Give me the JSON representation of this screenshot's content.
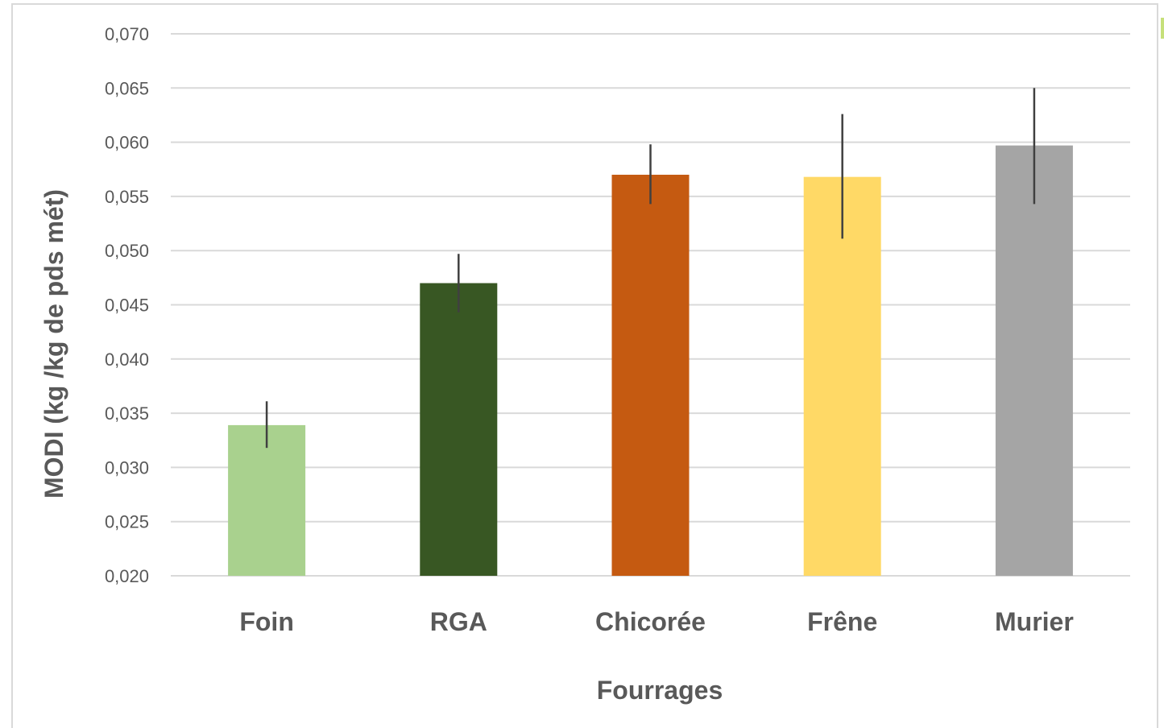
{
  "chart_data": {
    "type": "bar",
    "title": "",
    "xlabel": "Fourrages",
    "ylabel": "MODI (kg /kg de pds mét)",
    "categories": [
      "Foin",
      "RGA",
      "Chicorée",
      "Frêne",
      "Murier"
    ],
    "series": [
      {
        "values": [
          0.0339,
          0.047,
          0.057,
          0.0568,
          0.0597
        ],
        "error_low": [
          0.0318,
          0.0443,
          0.0543,
          0.0511,
          0.0543
        ],
        "error_high": [
          0.0361,
          0.0497,
          0.0598,
          0.0626,
          0.065
        ],
        "colors": [
          "#a9d18e",
          "#385723",
          "#c55a11",
          "#ffd966",
          "#a5a5a5"
        ]
      }
    ],
    "ylim": [
      0.02,
      0.07
    ],
    "yticks": [
      "0,020",
      "0,025",
      "0,030",
      "0,035",
      "0,040",
      "0,045",
      "0,050",
      "0,055",
      "0,060",
      "0,065",
      "0,070"
    ],
    "ytick_values": [
      0.02,
      0.025,
      0.03,
      0.035,
      0.04,
      0.045,
      0.05,
      0.055,
      0.06,
      0.065,
      0.07
    ],
    "grid": true,
    "legend": "none"
  }
}
